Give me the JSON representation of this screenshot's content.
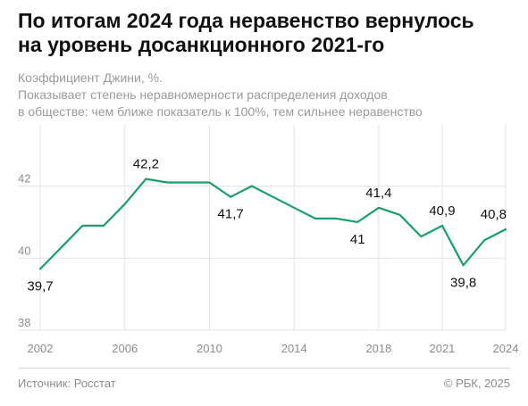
{
  "header": {
    "title_line1": "По итогам 2024 года неравенство вернулось",
    "title_line2": "на уровень досанкционного 2021-го",
    "subtitle_line1": "Коэффициент Джини, %.",
    "subtitle_line2": "Показывает степень неравномерности распределения доходов",
    "subtitle_line3": "в обществе: чем ближе показатель к 100%, тем сильнее неравенство"
  },
  "footer": {
    "source": "Источник: Росстат",
    "copyright": "© РБК, 2025"
  },
  "chart_data": {
    "type": "line",
    "series": [
      {
        "x": [
          2002,
          2003,
          2004,
          2005,
          2006,
          2007,
          2008,
          2009,
          2010,
          2011,
          2012,
          2013,
          2014,
          2015,
          2016,
          2017,
          2018,
          2019,
          2020,
          2021,
          2022,
          2023,
          2024
        ],
        "values": [
          39.7,
          40.3,
          40.9,
          40.9,
          41.5,
          42.2,
          42.1,
          42.1,
          42.1,
          41.7,
          42.0,
          41.7,
          41.4,
          41.1,
          41.1,
          41.0,
          41.4,
          41.2,
          40.6,
          40.9,
          39.8,
          40.5,
          40.8
        ]
      }
    ],
    "xticks": [
      "2002",
      "2006",
      "2010",
      "2014",
      "2018",
      "2021",
      "2024"
    ],
    "xtick_positions": [
      2002,
      2006,
      2010,
      2014,
      2018,
      2021,
      2024
    ],
    "yticks": [
      "38",
      "40",
      "42"
    ],
    "ytick_values": [
      38,
      40,
      42
    ],
    "xlim": [
      2002,
      2024
    ],
    "ylim": [
      38,
      43.5
    ],
    "grid": true,
    "line_color": "#1a9e6a",
    "annotations": [
      {
        "x": 2002,
        "y": 39.7,
        "text": "39,7",
        "pos": "below"
      },
      {
        "x": 2007,
        "y": 42.2,
        "text": "42,2",
        "pos": "above"
      },
      {
        "x": 2011,
        "y": 41.7,
        "text": "41,7",
        "pos": "below"
      },
      {
        "x": 2017,
        "y": 41.0,
        "text": "41",
        "pos": "below"
      },
      {
        "x": 2018,
        "y": 41.4,
        "text": "41,4",
        "pos": "above"
      },
      {
        "x": 2021,
        "y": 40.9,
        "text": "40,9",
        "pos": "above"
      },
      {
        "x": 2022,
        "y": 39.8,
        "text": "39,8",
        "pos": "below"
      },
      {
        "x": 2024,
        "y": 40.8,
        "text": "40,8",
        "pos": "above"
      }
    ]
  }
}
